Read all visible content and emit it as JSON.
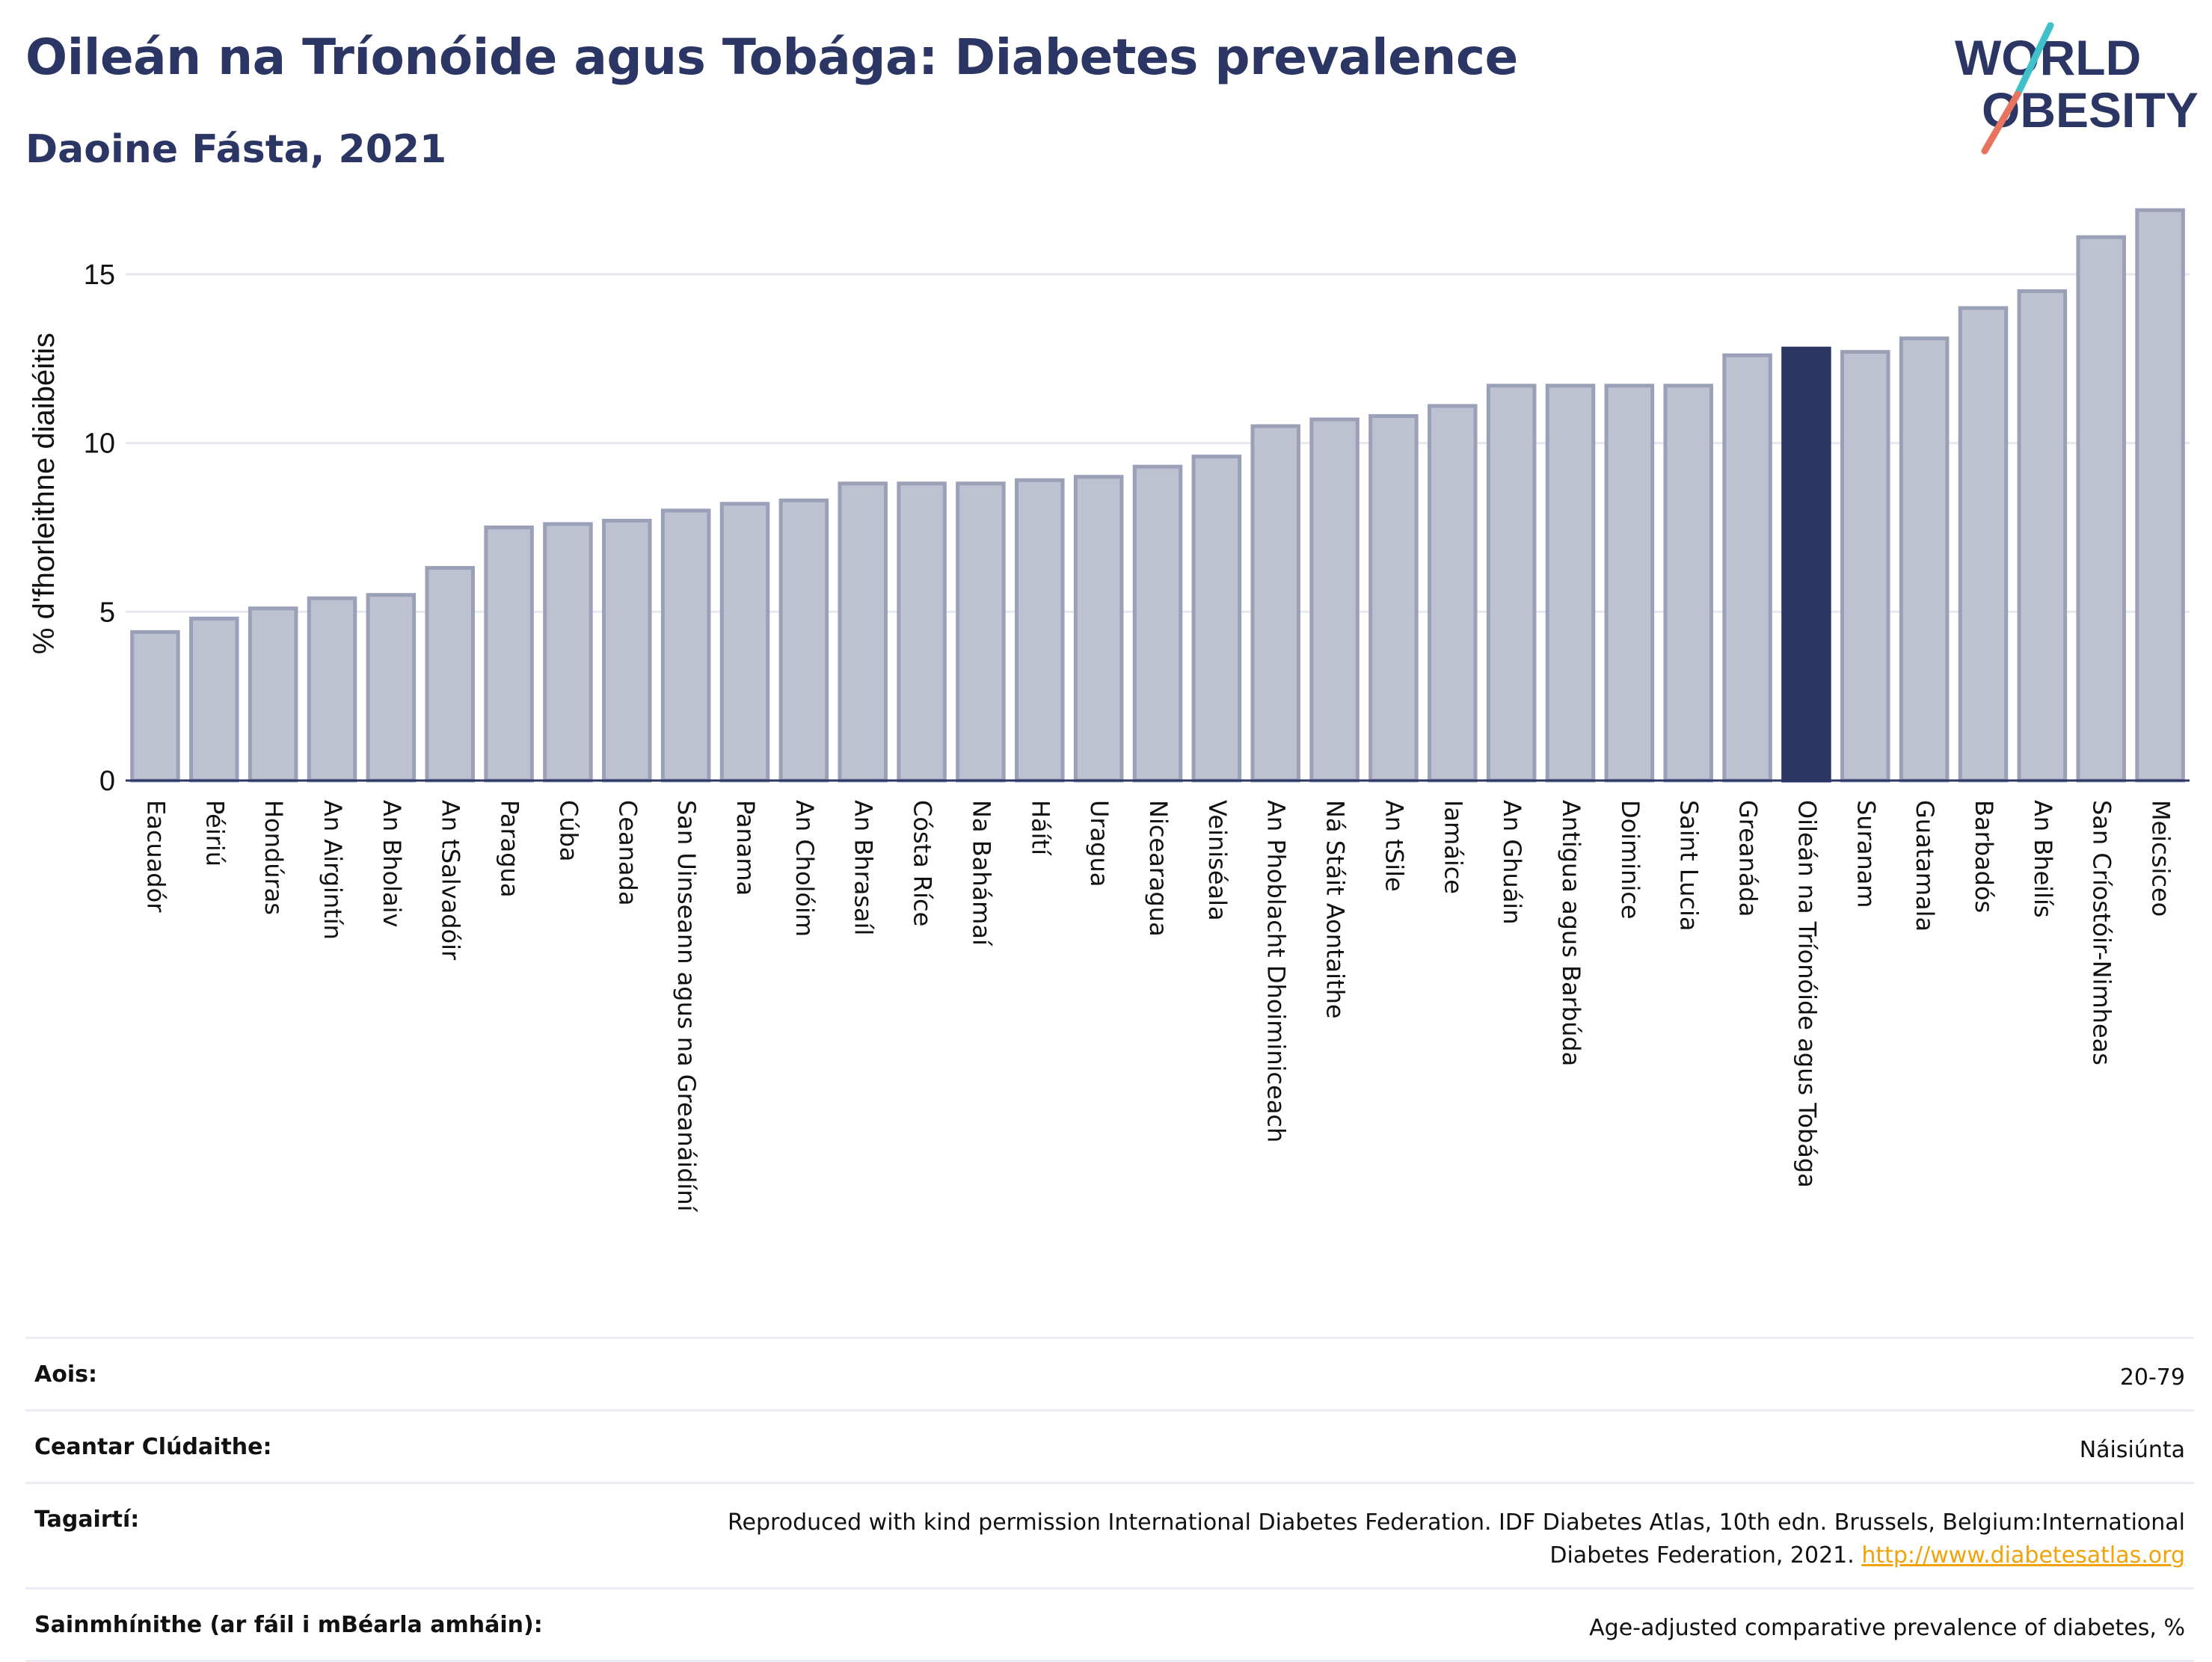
{
  "header": {
    "title": "Oileán na Tríonóide agus Tobága: Diabetes prevalence",
    "subtitle": "Daoine Fásta, 2021"
  },
  "logo": {
    "line1": "WORLD",
    "line2": "OBESITY",
    "colors": {
      "text": "#2b3664",
      "slash_teal": "#3ec1c9",
      "slash_red": "#e8735e"
    }
  },
  "chart_data": {
    "type": "bar",
    "title": "",
    "xlabel": "",
    "ylabel": "% d'fhorleithne diaibéitis",
    "ylim": [
      0,
      17.5
    ],
    "yticks": [
      0,
      5,
      10,
      15
    ],
    "grid": true,
    "highlight": "Oileán na Tríonóide agus Tobága",
    "colors": {
      "bar": "#bec2d0",
      "bar_edge": "#9aa0b7",
      "highlight": "#2b3664",
      "grid": "#e6e8ef",
      "axis": "#2b3664"
    },
    "categories": [
      "Eacuadór",
      "Péiriú",
      "Hondúras",
      "An Airgintín",
      "An Bholaiv",
      "An tSalvadóir",
      "Paragua",
      "Cúba",
      "Ceanada",
      "San Uinseann agus na Greanáidíní",
      "Panama",
      "An Cholóim",
      "An Bhrasaíl",
      "Cósta Ríce",
      "Na Bahámaí",
      "Háítí",
      "Uragua",
      "Nicearagua",
      "Veiniséala",
      "An Phoblacht Dhoiminiceach",
      "Ná Stáit Aontaithe",
      "An tSile",
      "Iamáice",
      "An Ghuáin",
      "Antigua agus Barbúda",
      "Doiminice",
      "Saint Lucia",
      "Greanáda",
      "Oileán na Tríonóide agus Tobága",
      "Suranam",
      "Guatamala",
      "Barbadós",
      "An Bheilís",
      "San Críostóir-Nimheas",
      "Meicsiceo"
    ],
    "values": [
      4.4,
      4.8,
      5.1,
      5.4,
      5.5,
      6.3,
      7.5,
      7.6,
      7.7,
      8.0,
      8.2,
      8.3,
      8.8,
      8.8,
      8.8,
      8.9,
      9.0,
      9.3,
      9.6,
      10.5,
      10.7,
      10.8,
      11.1,
      11.7,
      11.7,
      11.7,
      11.7,
      12.6,
      12.8,
      12.7,
      13.1,
      14.0,
      14.5,
      16.1,
      16.9
    ]
  },
  "meta": {
    "rows": [
      {
        "label": "Aois:",
        "value": "20-79"
      },
      {
        "label": "Ceantar Clúdaithe:",
        "value": "Náisiúnta"
      },
      {
        "label": "Tagairtí:",
        "value": "Reproduced with kind permission International Diabetes Federation.  IDF Diabetes Atlas, 10th edn. Brussels, Belgium:International Diabetes Federation, 2021.",
        "link": "http://www.diabetesatlas.org"
      },
      {
        "label": "Sainmhínithe (ar fáil i mBéarla amháin):",
        "value": "Age-adjusted comparative prevalence of diabetes, %"
      }
    ]
  }
}
